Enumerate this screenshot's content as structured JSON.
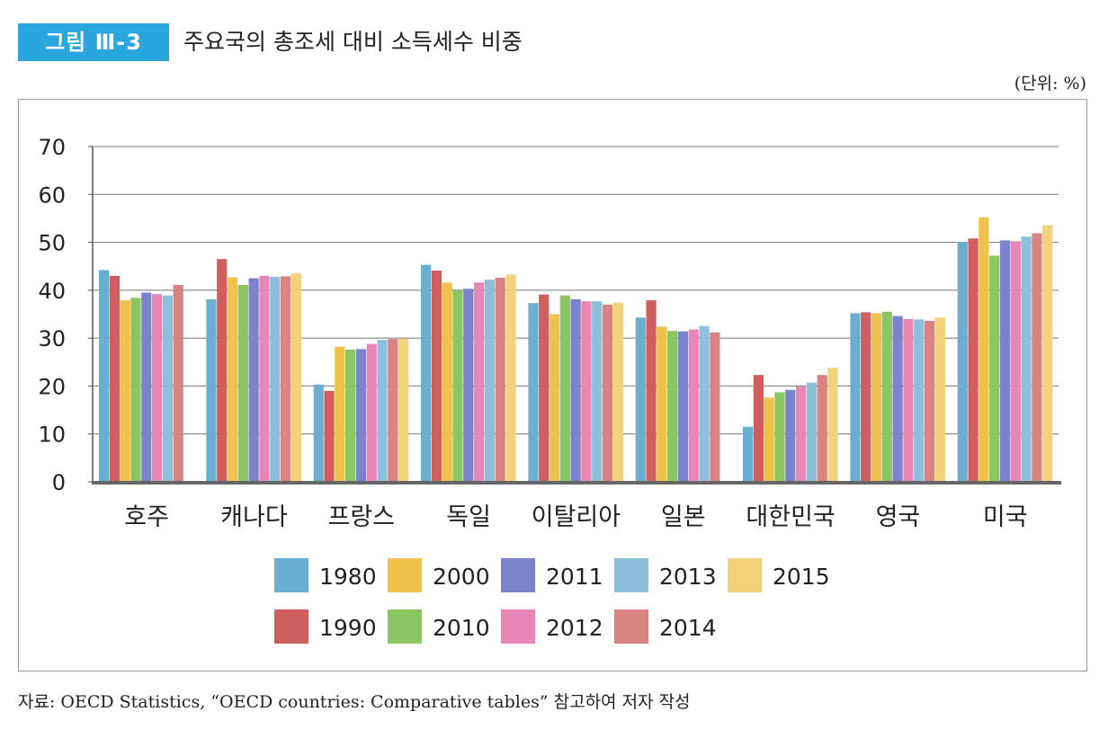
{
  "figure": {
    "label": "그림 Ⅲ-3",
    "title": "주요국의 총조세 대비 소득세수 비중",
    "unit": "(단위: %)",
    "source": "자료: OECD Statistics, “OECD countries: Comparative tables” 참고하여 저자 작성"
  },
  "chart_data": {
    "type": "bar",
    "title": "",
    "xlabel": "",
    "ylabel": "",
    "ylim": [
      0,
      70
    ],
    "yticks": [
      "0",
      "10",
      "20",
      "30",
      "40",
      "50",
      "60",
      "70"
    ],
    "grid": true,
    "legend_position": "bottom",
    "categories": [
      "호주",
      "캐나다",
      "프랑스",
      "독일",
      "이탈리아",
      "일본",
      "대한민국",
      "영국",
      "미국"
    ],
    "series": [
      {
        "name": "1980",
        "color": "#6aafd2",
        "values": [
          44.2,
          38.1,
          20.3,
          45.3,
          37.3,
          34.3,
          11.5,
          35.2,
          50.1
        ]
      },
      {
        "name": "1990",
        "color": "#cf5f5f",
        "values": [
          43.0,
          46.5,
          19.0,
          44.1,
          39.1,
          37.9,
          22.3,
          35.4,
          50.8
        ]
      },
      {
        "name": "2000",
        "color": "#eec24b",
        "values": [
          37.9,
          42.7,
          28.2,
          41.6,
          35.0,
          32.4,
          17.6,
          35.2,
          55.2
        ]
      },
      {
        "name": "2010",
        "color": "#8ac661",
        "values": [
          38.4,
          41.1,
          27.6,
          39.9,
          38.9,
          31.5,
          18.7,
          35.5,
          47.2
        ]
      },
      {
        "name": "2011",
        "color": "#7a83cc",
        "values": [
          39.5,
          42.5,
          27.7,
          40.3,
          38.1,
          31.4,
          19.2,
          34.6,
          50.4
        ]
      },
      {
        "name": "2012",
        "color": "#e787b5",
        "values": [
          39.2,
          43.0,
          28.8,
          41.6,
          37.7,
          31.8,
          19.9,
          34.0,
          50.2
        ]
      },
      {
        "name": "2013",
        "color": "#8ec0dc",
        "values": [
          38.9,
          42.8,
          29.6,
          42.2,
          37.7,
          32.5,
          20.7,
          33.9,
          51.2
        ]
      },
      {
        "name": "2014",
        "color": "#d98383",
        "values": [
          41.1,
          42.9,
          29.8,
          42.6,
          37.0,
          31.2,
          22.3,
          33.6,
          51.9
        ]
      },
      {
        "name": "2015",
        "color": "#f3d27c",
        "values": [
          null,
          43.5,
          29.9,
          43.3,
          37.4,
          null,
          23.8,
          34.3,
          53.6
        ]
      }
    ],
    "legend_rows": [
      [
        "1980",
        "2000",
        "2011",
        "2013",
        "2015"
      ],
      [
        "1990",
        "2010",
        "2012",
        "2014"
      ]
    ]
  }
}
